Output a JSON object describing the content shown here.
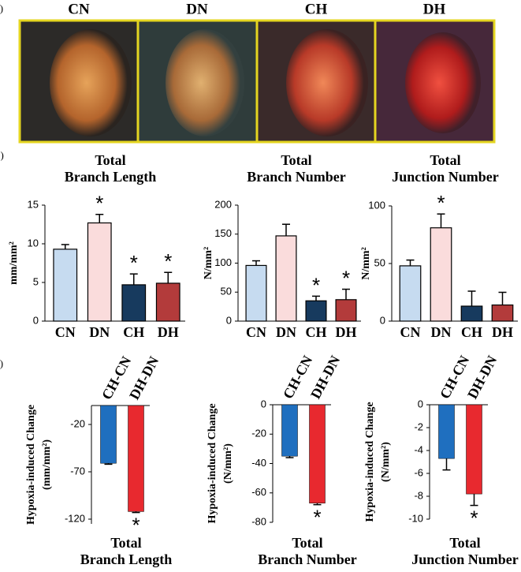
{
  "panel_labels": [
    "a)",
    "b)",
    "c)"
  ],
  "images": {
    "labels": [
      "CN",
      "DN",
      "CH",
      "DH"
    ]
  },
  "chart_data": [
    {
      "type": "bar",
      "title": [
        "Total",
        "Branch Length"
      ],
      "ylabel": [
        "mm/mm²"
      ],
      "categories": [
        "CN",
        "DN",
        "CH",
        "DH"
      ],
      "values": [
        9.3,
        12.7,
        4.7,
        4.9
      ],
      "errors": [
        0.6,
        1.1,
        1.4,
        1.4
      ],
      "colors": [
        "#c6dbf0",
        "#fadcdc",
        "#173a5e",
        "#b33b3b"
      ],
      "significance": [
        null,
        "*",
        "*",
        "*"
      ],
      "ylim": [
        0,
        15
      ],
      "yticks": [
        0,
        5,
        10,
        15
      ]
    },
    {
      "type": "bar",
      "title": [
        "Total",
        "Branch Number"
      ],
      "ylabel": [
        "N/mm²"
      ],
      "categories": [
        "CN",
        "DN",
        "CH",
        "DH"
      ],
      "values": [
        96,
        147,
        35,
        37
      ],
      "errors": [
        8,
        20,
        8,
        18
      ],
      "colors": [
        "#c6dbf0",
        "#fadcdc",
        "#173a5e",
        "#b33b3b"
      ],
      "significance": [
        null,
        null,
        "*",
        "*"
      ],
      "ylim": [
        0,
        200
      ],
      "yticks": [
        0,
        50,
        100,
        150,
        200
      ]
    },
    {
      "type": "bar",
      "title": [
        "Total",
        "Junction Number"
      ],
      "ylabel": [
        "N/mm²"
      ],
      "categories": [
        "CN",
        "DN",
        "CH",
        "DH"
      ],
      "values": [
        48,
        81,
        13,
        14
      ],
      "errors": [
        5,
        12,
        13,
        11
      ],
      "colors": [
        "#c6dbf0",
        "#fadcdc",
        "#173a5e",
        "#b33b3b"
      ],
      "significance": [
        null,
        "*",
        null,
        null
      ],
      "ylim": [
        0,
        100
      ],
      "yticks": [
        0,
        50,
        100
      ]
    },
    {
      "type": "bar",
      "title": [
        "Total",
        "Branch Length"
      ],
      "ylabel": [
        "Hypoxia-induced Change",
        "(mm/mm²)"
      ],
      "categories": [
        "CH-CN",
        "DH-DN"
      ],
      "values": [
        -61,
        -112
      ],
      "errors": [
        1,
        1
      ],
      "colors": [
        "#1f6fbf",
        "#e8292f"
      ],
      "significance": [
        null,
        "*"
      ],
      "ylim": [
        -125,
        0
      ],
      "yticks": [
        -20,
        -70,
        -120
      ]
    },
    {
      "type": "bar",
      "title": [
        "Total",
        "Branch Number"
      ],
      "ylabel": [
        "Hypoxia-induced Change",
        "(N/mm²)"
      ],
      "categories": [
        "CH-CN",
        "DH-DN"
      ],
      "values": [
        -35,
        -67
      ],
      "errors": [
        1,
        1
      ],
      "colors": [
        "#1f6fbf",
        "#e8292f"
      ],
      "significance": [
        null,
        "*"
      ],
      "ylim": [
        -80,
        0
      ],
      "yticks": [
        0,
        -20,
        -40,
        -60,
        -80
      ]
    },
    {
      "type": "bar",
      "title": [
        "Total",
        "Junction Number"
      ],
      "ylabel": [
        "Hypoxia-induced Change",
        "(N/mm²)"
      ],
      "categories": [
        "CH-CN",
        "DH-DN"
      ],
      "values": [
        -4.7,
        -7.8
      ],
      "errors": [
        1,
        1
      ],
      "colors": [
        "#1f6fbf",
        "#e8292f"
      ],
      "significance": [
        null,
        "*"
      ],
      "ylim": [
        -10,
        0
      ],
      "yticks": [
        0,
        -2,
        -4,
        -6,
        -8,
        -10
      ]
    }
  ]
}
